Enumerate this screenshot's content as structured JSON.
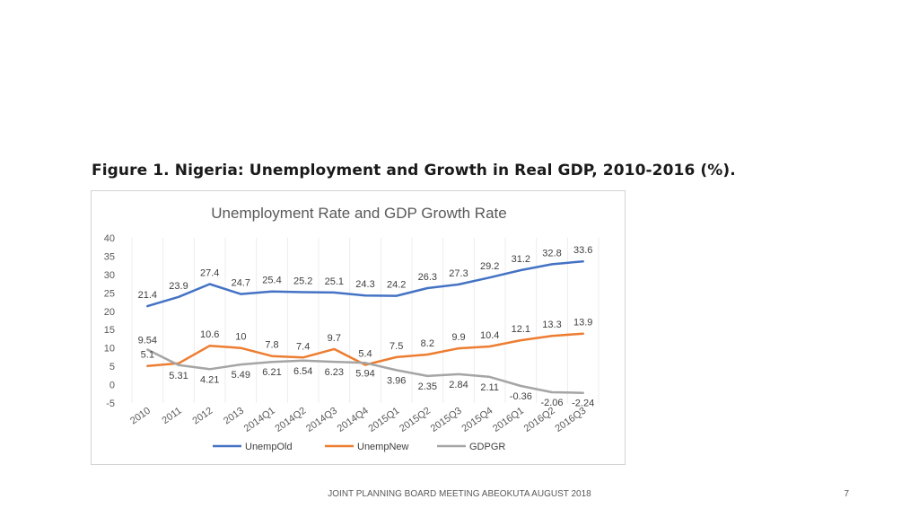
{
  "figure_caption": "Figure 1. Nigeria: Unemployment and Growth in Real GDP, 2010-2016 (%).",
  "footer": "JOINT PLANNING BOARD MEETING ABEOKUTA AUGUST 2018",
  "page_number": "7",
  "chart_data": {
    "type": "line",
    "title": "Unemployment Rate and GDP Growth Rate",
    "xlabel": "",
    "ylabel": "",
    "ylim": [
      -5,
      40
    ],
    "yticks": [
      "40",
      "35",
      "30",
      "25",
      "20",
      "15",
      "10",
      "5",
      "0",
      "-5"
    ],
    "grid": "vertical",
    "legend_position": "bottom",
    "categories": [
      "2010",
      "2011",
      "2012",
      "2013",
      "2014Q1",
      "2014Q2",
      "2014Q3",
      "2014Q4",
      "2015Q1",
      "2015Q2",
      "2015Q3",
      "2015Q4",
      "2016Q1",
      "2016Q2",
      "2016Q3"
    ],
    "series": [
      {
        "name": "UnempOld",
        "color": "#4472c4",
        "values": [
          21.4,
          23.9,
          27.4,
          24.7,
          25.4,
          25.2,
          25.1,
          24.3,
          24.2,
          26.3,
          27.3,
          29.2,
          31.2,
          32.8,
          33.6
        ],
        "labels": [
          "21.4",
          "23.9",
          "27.4",
          "24.7",
          "25.4",
          "25.2",
          "25.1",
          "24.3",
          "24.2",
          "26.3",
          "27.3",
          "29.2",
          "31.2",
          "32.8",
          "33.6"
        ]
      },
      {
        "name": "UnempNew",
        "color": "#ed7d31",
        "values": [
          null,
          null,
          null,
          null,
          null,
          null,
          null,
          null,
          7.5,
          8.2,
          9.9,
          10.4,
          12.1,
          13.3,
          13.9
        ],
        "labels": [
          "",
          "",
          "",
          "",
          "",
          "",
          "",
          "",
          "7.5",
          "8.2",
          "9.9",
          "10.4",
          "12.1",
          "13.3",
          "13.9"
        ]
      },
      {
        "name": "GDPGR",
        "color": "#a5a5a5",
        "values": [
          9.54,
          5.31,
          4.21,
          5.49,
          6.21,
          6.54,
          6.23,
          5.94,
          3.96,
          2.35,
          2.84,
          2.11,
          -0.36,
          -2.06,
          -2.24
        ],
        "labels": [
          "9.54",
          "5.31",
          "4.21",
          "5.49",
          "6.21",
          "6.54",
          "6.23",
          "5.94",
          "3.96",
          "2.35",
          "2.84",
          "2.11",
          "-0.36",
          "-2.06",
          "-2.24"
        ]
      }
    ],
    "note_unempnew_early": "UnempNew line in early period visible without reliable labels",
    "unempnew_early_values": [
      5.1,
      5.8,
      10.6,
      10,
      7.8,
      7.4,
      9.7,
      5.4
    ],
    "unempnew_early_labels": [
      "5.1",
      "",
      "10.6",
      "10",
      "7.8",
      "7.4",
      "9.7",
      "5.4"
    ]
  }
}
